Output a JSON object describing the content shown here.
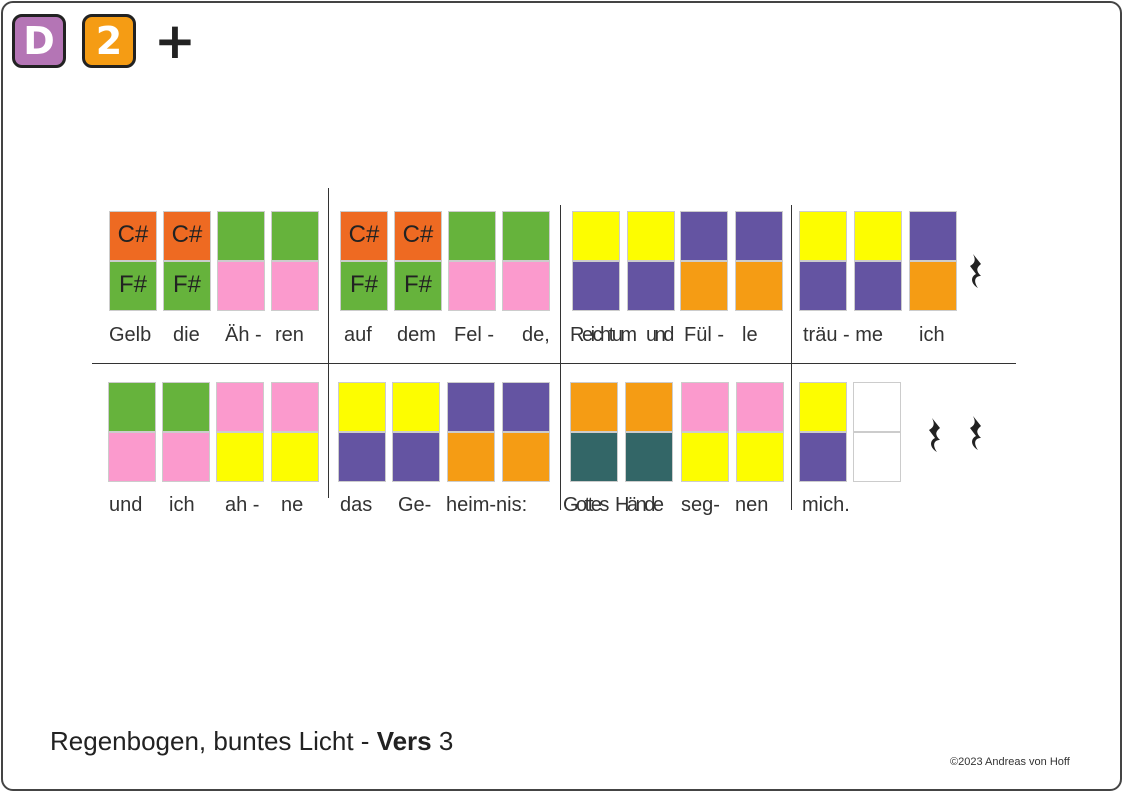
{
  "colors": {
    "orange_red": "#ee6a22",
    "green": "#66b33c",
    "pink": "#fb9acd",
    "yellow": "#fdfd00",
    "purple": "#6454a2",
    "orange": "#f59c14",
    "teal": "#336667",
    "white": "#ffffff",
    "badge_d": "#b475b5",
    "badge_2": "#f59c14"
  },
  "header": {
    "badge_d": "D",
    "badge_2": "2",
    "plus": "+"
  },
  "notes_row1": [
    {
      "top": "orange_red",
      "bot": "green",
      "top_text": "C#",
      "bot_text": "F#"
    },
    {
      "top": "orange_red",
      "bot": "green",
      "top_text": "C#",
      "bot_text": "F#"
    },
    {
      "top": "green",
      "bot": "pink"
    },
    {
      "top": "green",
      "bot": "pink"
    },
    {
      "top": "orange_red",
      "bot": "green",
      "top_text": "C#",
      "bot_text": "F#"
    },
    {
      "top": "orange_red",
      "bot": "green",
      "top_text": "C#",
      "bot_text": "F#"
    },
    {
      "top": "green",
      "bot": "pink"
    },
    {
      "top": "green",
      "bot": "pink"
    },
    {
      "top": "yellow",
      "bot": "purple"
    },
    {
      "top": "yellow",
      "bot": "purple"
    },
    {
      "top": "purple",
      "bot": "orange"
    },
    {
      "top": "purple",
      "bot": "orange"
    },
    {
      "top": "yellow",
      "bot": "purple"
    },
    {
      "top": "yellow",
      "bot": "purple"
    },
    {
      "top": "purple",
      "bot": "orange"
    }
  ],
  "notes_row2": [
    {
      "top": "green",
      "bot": "pink"
    },
    {
      "top": "green",
      "bot": "pink"
    },
    {
      "top": "pink",
      "bot": "yellow"
    },
    {
      "top": "pink",
      "bot": "yellow"
    },
    {
      "top": "yellow",
      "bot": "purple"
    },
    {
      "top": "yellow",
      "bot": "purple"
    },
    {
      "top": "purple",
      "bot": "orange"
    },
    {
      "top": "purple",
      "bot": "orange"
    },
    {
      "top": "orange",
      "bot": "teal"
    },
    {
      "top": "orange",
      "bot": "teal"
    },
    {
      "top": "pink",
      "bot": "yellow"
    },
    {
      "top": "pink",
      "bot": "yellow"
    },
    {
      "top": "yellow",
      "bot": "purple"
    },
    {
      "top": "white",
      "bot": "white"
    }
  ],
  "lyrics_row1": [
    "Gelb",
    "die",
    "Äh -",
    "ren",
    "auf",
    "dem",
    "Fel -",
    "de,",
    "Reichtum",
    "und",
    "Fül -",
    "le",
    "träu - me",
    "ich"
  ],
  "lyrics_row2": [
    "und",
    "ich",
    "ah -",
    "ne",
    "das",
    "Ge-",
    "heim-nis:",
    "Gottes",
    "Hände",
    "seg-",
    "nen",
    "mich."
  ],
  "footer": {
    "title_main": "Regenbogen, buntes Licht - ",
    "title_bold": "Vers",
    "title_num": " 3",
    "copyright": "©2023 Andreas von Hoff"
  }
}
